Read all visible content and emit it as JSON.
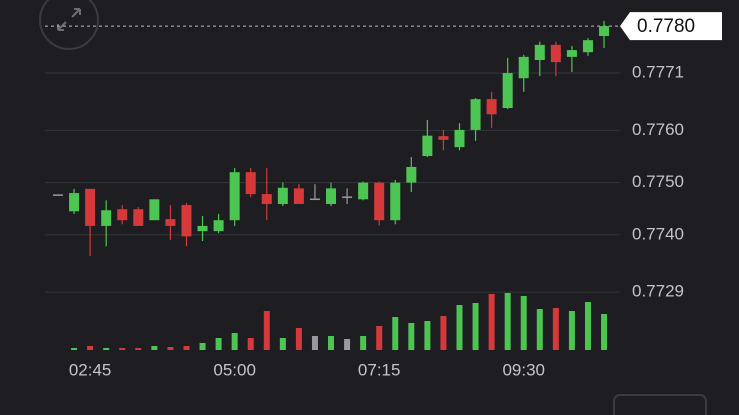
{
  "chart_data": {
    "type": "candlestick",
    "categories": [
      null,
      null,
      "02:45",
      null,
      null,
      null,
      null,
      null,
      null,
      null,
      null,
      "05:00",
      null,
      null,
      null,
      null,
      null,
      null,
      null,
      null,
      "07:15",
      null,
      null,
      null,
      null,
      null,
      null,
      null,
      null,
      "09:30",
      null,
      null,
      null,
      null,
      null
    ],
    "open": [
      0.77476,
      0.77445,
      0.77488,
      0.77417,
      0.77449,
      0.77449,
      0.77428,
      0.7743,
      0.77457,
      0.77407,
      0.77407,
      0.77428,
      0.7752,
      0.77478,
      0.77459,
      0.77489,
      0.77468,
      0.77459,
      0.77472,
      0.77468,
      0.775,
      0.77428,
      0.775,
      0.77551,
      0.77589,
      0.77568,
      0.77601,
      0.7766,
      0.77643,
      0.777,
      0.77735,
      0.77764,
      0.77741,
      0.7775,
      0.77781
    ],
    "high": [
      0.77476,
      0.77488,
      0.77488,
      0.77466,
      0.77457,
      0.77453,
      0.77468,
      0.77457,
      0.77461,
      0.77436,
      0.7744,
      0.77528,
      0.77528,
      0.77528,
      0.775,
      0.77497,
      0.77497,
      0.775,
      0.77489,
      0.77502,
      0.77502,
      0.77505,
      0.77549,
      0.7762,
      0.77601,
      0.77614,
      0.77662,
      0.77674,
      0.77739,
      0.77745,
      0.7777,
      0.7777,
      0.77762,
      0.77777,
      0.7781
    ],
    "low": [
      0.77476,
      0.7744,
      0.77359,
      0.77378,
      0.7742,
      0.77417,
      0.77428,
      0.7739,
      0.77378,
      0.77388,
      0.77403,
      0.77417,
      0.77472,
      0.77428,
      0.77455,
      0.77459,
      0.77468,
      0.77455,
      0.77459,
      0.77466,
      0.77418,
      0.7742,
      0.77482,
      0.77549,
      0.77562,
      0.77562,
      0.7758,
      0.77605,
      0.77641,
      0.77674,
      0.77704,
      0.77704,
      0.77712,
      0.77743,
      0.77758
    ],
    "close": [
      0.77476,
      0.7748,
      0.77417,
      0.77447,
      0.77428,
      0.77417,
      0.77468,
      0.77417,
      0.77397,
      0.77417,
      0.77428,
      0.7752,
      0.77478,
      0.77459,
      0.7749,
      0.77459,
      0.77468,
      0.77489,
      0.77472,
      0.775,
      0.77428,
      0.775,
      0.7753,
      0.7759,
      0.77582,
      0.77601,
      0.7766,
      0.77631,
      0.7771,
      0.77741,
      0.77764,
      0.77731,
      0.77754,
      0.77773,
      0.778
    ],
    "volume": [
      0,
      2,
      4,
      2,
      2,
      2,
      4,
      3,
      4,
      7,
      12,
      17,
      12,
      39,
      12,
      22,
      14,
      14,
      11,
      14,
      24,
      33,
      27,
      29,
      34,
      45,
      47,
      56,
      57,
      54,
      41,
      42,
      39,
      48,
      36
    ],
    "volume_lim": [
      0,
      60
    ],
    "ylim": [
      0.77275,
      0.7785
    ],
    "yticks": [
      0.7729,
      {
        "value": 0.774,
        "label": "0.7740"
      },
      {
        "value": 0.775,
        "label": "0.7750"
      },
      {
        "value": 0.776,
        "label": "0.7760"
      },
      0.7771
    ],
    "last_price": {
      "value": 0.778,
      "label": "0.7780"
    },
    "up_color": "#4cc552",
    "down_color": "#d5393a",
    "flat_color": "#9a9a9e",
    "grid": true
  }
}
